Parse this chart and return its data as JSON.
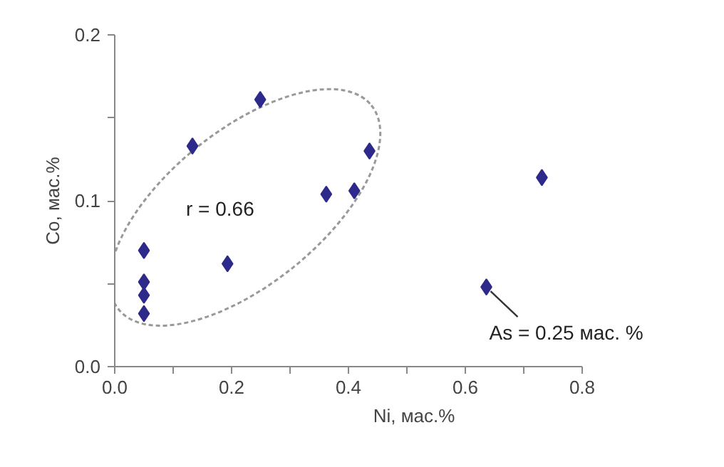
{
  "chart_data": {
    "type": "scatter",
    "xlabel": "Ni, мас.%",
    "ylabel": "Co, мас.%",
    "x": [
      0.05,
      0.05,
      0.05,
      0.05,
      0.133,
      0.193,
      0.249,
      0.362,
      0.41,
      0.436,
      0.731,
      0.636
    ],
    "values": [
      0.07,
      0.051,
      0.043,
      0.032,
      0.133,
      0.062,
      0.161,
      0.104,
      0.106,
      0.13,
      0.114,
      0.048
    ],
    "color": "#2e2a8c",
    "marker": "diamond",
    "grid": false,
    "xlim": [
      0,
      0.8
    ],
    "ylim": [
      0,
      0.2
    ],
    "xticks": [
      {
        "value": 0,
        "label": "0.0"
      },
      {
        "value": 0.1,
        "label": null
      },
      0.2,
      {
        "value": 0.3,
        "label": null
      },
      0.4,
      {
        "value": 0.5,
        "label": null
      },
      0.6,
      {
        "value": 0.7,
        "label": null
      },
      0.8
    ],
    "yticks": [
      {
        "value": 0,
        "label": "0.0"
      },
      {
        "value": 0.05,
        "label": null
      },
      0.1,
      {
        "value": 0.15,
        "label": null
      },
      0.2
    ],
    "annotations": [
      "r = 0.66",
      {
        "text": "As = 0.25 мас. %",
        "x": 0.636,
        "y": 0.048
      }
    ]
  }
}
